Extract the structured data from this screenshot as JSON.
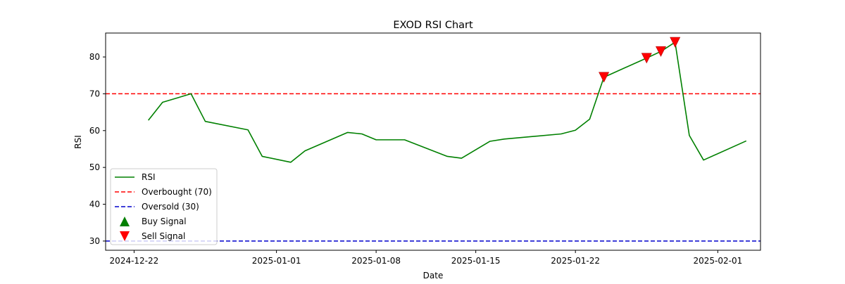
{
  "chart_data": {
    "type": "line",
    "title": "EXOD RSI Chart",
    "xlabel": "Date",
    "ylabel": "RSI",
    "xlim": [
      "2024-12-20",
      "2025-02-04"
    ],
    "ylim": [
      27.5,
      86.5
    ],
    "x_ticks": [
      "2024-12-22",
      "2025-01-01",
      "2025-01-08",
      "2025-01-15",
      "2025-01-22",
      "2025-02-01"
    ],
    "y_ticks": [
      30,
      40,
      50,
      60,
      70,
      80
    ],
    "grid": false,
    "legend_placement": "lower-left",
    "series": [
      {
        "name": "RSI",
        "color": "#008000",
        "x": [
          "2024-12-23",
          "2024-12-24",
          "2024-12-26",
          "2024-12-27",
          "2024-12-30",
          "2024-12-31",
          "2025-01-02",
          "2025-01-03",
          "2025-01-06",
          "2025-01-07",
          "2025-01-08",
          "2025-01-10",
          "2025-01-13",
          "2025-01-14",
          "2025-01-16",
          "2025-01-17",
          "2025-01-21",
          "2025-01-22",
          "2025-01-23",
          "2025-01-24",
          "2025-01-27",
          "2025-01-28",
          "2025-01-29",
          "2025-01-30",
          "2025-01-31",
          "2025-02-03"
        ],
        "y": [
          62.8,
          67.7,
          70.0,
          62.5,
          60.2,
          53.0,
          51.4,
          54.5,
          59.5,
          59.1,
          57.5,
          57.5,
          53.0,
          52.5,
          57.1,
          57.7,
          59.1,
          60.1,
          63.1,
          74.5,
          79.7,
          81.5,
          84.0,
          58.7,
          52.0,
          57.2
        ]
      },
      {
        "name": "Overbought (70)",
        "color": "#ff0000",
        "style": "dashed",
        "y": 70
      },
      {
        "name": "Oversold (30)",
        "color": "#0000cc",
        "style": "dashed",
        "y": 30
      },
      {
        "name": "Buy Signal",
        "color": "#008000",
        "marker": "triangle-up",
        "x": [],
        "y": []
      },
      {
        "name": "Sell Signal",
        "color": "#ff0000",
        "marker": "triangle-down",
        "x": [
          "2025-01-24",
          "2025-01-27",
          "2025-01-28",
          "2025-01-29"
        ],
        "y": [
          74.5,
          79.7,
          81.5,
          84.0
        ]
      }
    ]
  }
}
